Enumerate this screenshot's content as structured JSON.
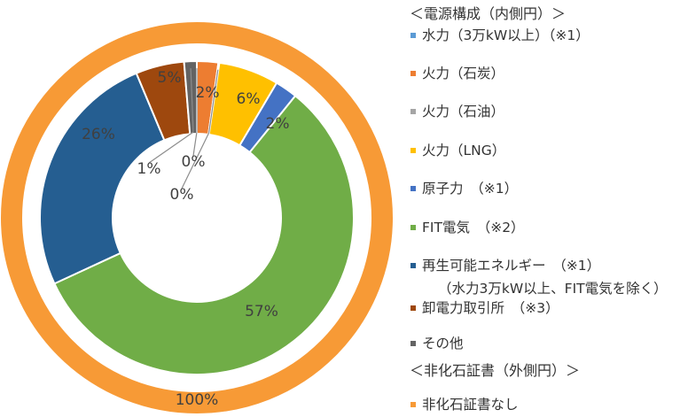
{
  "chart_data": {
    "type": "donut",
    "inner_ring": {
      "heading": "＜電源構成（内側円）＞",
      "series": [
        {
          "name": "水力（3万kW以上）(※1)",
          "legend_text": "水力（3万kW以上）（※1）",
          "value": 0,
          "label": "0%",
          "color": "#5B9BD5"
        },
        {
          "name": "火力（石炭）",
          "legend_text": "火力（石炭）",
          "value": 2.2,
          "label": "2%",
          "color": "#ED7D31"
        },
        {
          "name": "火力（石油）",
          "legend_text": "火力（石油）",
          "value": 0.1,
          "label": "0%",
          "color": "#A5A5A5"
        },
        {
          "name": "火力（LNG）",
          "legend_text": "火力（LNG）",
          "value": 6.2,
          "label": "6%",
          "color": "#FFC000"
        },
        {
          "name": "原子力 (※1)",
          "legend_text": "原子力　（※1）",
          "value": 2.3,
          "label": "2%",
          "color": "#4472C4"
        },
        {
          "name": "FIT電気 (※2)",
          "legend_text": "FIT電気　（※2）",
          "value": 57.3,
          "label": "57%",
          "color": "#70AD47"
        },
        {
          "name": "再生可能エネルギー (※1)",
          "legend_text": "再生可能エネルギー　（※1）",
          "legend_subtext": "（水力3万kW以上、FIT電気を除く）",
          "value": 25.6,
          "label": "26%",
          "color": "#255E91"
        },
        {
          "name": "卸電力取引所 (※3)",
          "legend_text": "卸電力取引所　（※3）",
          "value": 5.0,
          "label": "5%",
          "color": "#9E480E"
        },
        {
          "name": "その他",
          "legend_text": "その他",
          "value": 1.3,
          "label": "1%",
          "color": "#636363"
        }
      ]
    },
    "outer_ring": {
      "heading": "＜非化石証書（外側円）＞",
      "series": [
        {
          "name": "非化石証書なし",
          "legend_text": "非化石証書なし",
          "value": 100,
          "label": "100%",
          "color": "#F79A36"
        }
      ]
    }
  }
}
